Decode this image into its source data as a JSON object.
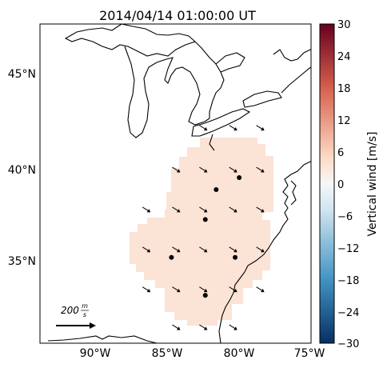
{
  "title": "2014/04/14 01:00:00 UT",
  "axes": {
    "x_ticks": [
      "90°W",
      "85°W",
      "80°W",
      "75°W"
    ],
    "y_ticks": [
      "45°N",
      "40°N",
      "35°N"
    ]
  },
  "colorbar": {
    "label": "Vertical wind [m/s]",
    "ticks": [
      "30",
      "24",
      "18",
      "12",
      "6",
      "0",
      "−6",
      "−12",
      "−18",
      "−24",
      "−30"
    ],
    "range": [
      -30,
      30
    ],
    "colors": {
      "top": "#67001f",
      "upper": "#d6604d",
      "mid_high": "#fddbc7",
      "mid": "#f7f7f7",
      "mid_low": "#d1e5f0",
      "lower": "#4393c3",
      "bottom": "#053061"
    }
  },
  "scale_arrow": {
    "label_value": "200",
    "label_unit_num": "m",
    "label_unit_den": "s"
  },
  "field": {
    "fill_color": "#fbe3d6",
    "level_m_per_s": 3
  },
  "map_data": {
    "type": "map",
    "lon_range": [
      -95,
      -75
    ],
    "lat_range": [
      31,
      47
    ],
    "stations": [
      {
        "lon": -82.8,
        "lat": 37.2
      },
      {
        "lon": -82.0,
        "lat": 38.7
      },
      {
        "lon": -80.3,
        "lat": 39.3
      },
      {
        "lon": -85.3,
        "lat": 35.3
      },
      {
        "lon": -80.6,
        "lat": 35.3
      },
      {
        "lon": -82.8,
        "lat": 33.4
      }
    ],
    "arrows": [
      {
        "lon": -83.0,
        "lat": 41.8
      },
      {
        "lon": -80.8,
        "lat": 41.8
      },
      {
        "lon": -78.8,
        "lat": 41.8
      },
      {
        "lon": -85.0,
        "lat": 39.7
      },
      {
        "lon": -83.0,
        "lat": 39.7
      },
      {
        "lon": -80.8,
        "lat": 39.7
      },
      {
        "lon": -78.8,
        "lat": 39.7
      },
      {
        "lon": -87.2,
        "lat": 37.7
      },
      {
        "lon": -85.0,
        "lat": 37.7
      },
      {
        "lon": -83.0,
        "lat": 37.7
      },
      {
        "lon": -80.8,
        "lat": 37.7
      },
      {
        "lon": -78.8,
        "lat": 37.7
      },
      {
        "lon": -87.2,
        "lat": 35.7
      },
      {
        "lon": -85.0,
        "lat": 35.7
      },
      {
        "lon": -83.0,
        "lat": 35.7
      },
      {
        "lon": -80.8,
        "lat": 35.7
      },
      {
        "lon": -78.8,
        "lat": 35.7
      },
      {
        "lon": -87.2,
        "lat": 33.7
      },
      {
        "lon": -85.0,
        "lat": 33.7
      },
      {
        "lon": -83.0,
        "lat": 33.7
      },
      {
        "lon": -80.8,
        "lat": 33.7
      },
      {
        "lon": -78.8,
        "lat": 33.7
      },
      {
        "lon": -85.0,
        "lat": 31.8
      },
      {
        "lon": -83.0,
        "lat": 31.8
      },
      {
        "lon": -80.8,
        "lat": 31.8
      }
    ]
  }
}
